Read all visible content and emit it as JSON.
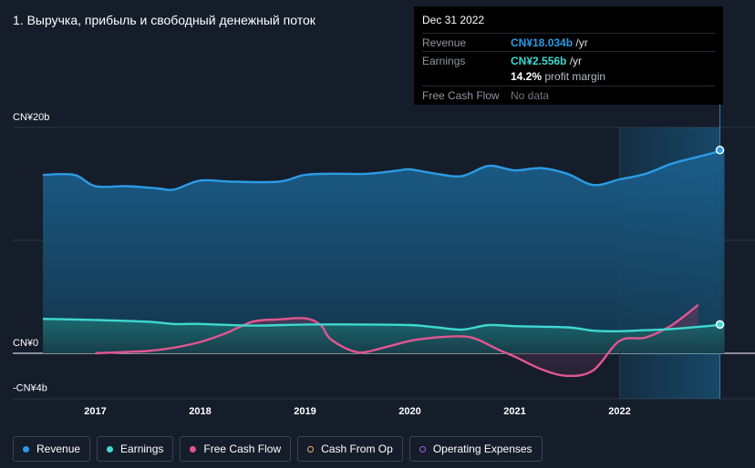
{
  "title": "1. Выручка, прибыль и свободный денежный поток",
  "tooltip": {
    "date": "Dec 31 2022",
    "revenue_label": "Revenue",
    "revenue_value": "CN¥18.034b",
    "revenue_unit": "/yr",
    "earnings_label": "Earnings",
    "earnings_value": "CN¥2.556b",
    "earnings_unit": "/yr",
    "margin_value": "14.2%",
    "margin_label": "profit margin",
    "fcf_label": "Free Cash Flow",
    "fcf_value": "No data"
  },
  "legend": [
    {
      "label": "Revenue",
      "color": "#2b9be5",
      "filled": true
    },
    {
      "label": "Earnings",
      "color": "#3fd9cf",
      "filled": true
    },
    {
      "label": "Free Cash Flow",
      "color": "#e2568f",
      "filled": true
    },
    {
      "label": "Cash From Op",
      "color": "#e8b06a",
      "filled": false
    },
    {
      "label": "Operating Expenses",
      "color": "#a461d8",
      "filled": false
    }
  ],
  "chart_data": {
    "type": "area",
    "title": "1. Выручка, прибыль и свободный денежный поток",
    "ylim": [
      -4,
      20
    ],
    "y_tick_labels": [
      {
        "value": 20,
        "label": "CN¥20b"
      },
      {
        "value": 0,
        "label": "CN¥0"
      },
      {
        "value": -4,
        "label": "-CN¥4b"
      }
    ],
    "xlim": [
      2016.5,
      2023.0
    ],
    "x_tick_labels": [
      "2017",
      "2018",
      "2019",
      "2020",
      "2021",
      "2022"
    ],
    "x_tick_values": [
      2017,
      2018,
      2019,
      2020,
      2021,
      2022
    ],
    "forecast_start": 2022.0,
    "series": [
      {
        "name": "Revenue",
        "color": "#2b9be5",
        "x": [
          2016.5,
          2016.8,
          2017.0,
          2017.3,
          2017.6,
          2017.75,
          2018.0,
          2018.3,
          2018.75,
          2019.0,
          2019.3,
          2019.6,
          2019.9,
          2020.0,
          2020.25,
          2020.5,
          2020.75,
          2021.0,
          2021.25,
          2021.5,
          2021.75,
          2022.0,
          2022.25,
          2022.5,
          2022.75,
          2023.0
        ],
        "values": [
          15.8,
          15.8,
          14.8,
          14.8,
          14.6,
          14.5,
          15.3,
          15.2,
          15.2,
          15.8,
          15.9,
          15.9,
          16.2,
          16.3,
          15.9,
          15.7,
          16.6,
          16.2,
          16.4,
          15.9,
          14.9,
          15.4,
          15.9,
          16.8,
          17.4,
          18.0
        ]
      },
      {
        "name": "Earnings",
        "color": "#3fd9cf",
        "x": [
          2016.5,
          2017.0,
          2017.5,
          2017.75,
          2018.0,
          2018.5,
          2019.0,
          2019.5,
          2020.0,
          2020.25,
          2020.5,
          2020.75,
          2021.0,
          2021.5,
          2021.75,
          2022.0,
          2022.25,
          2022.5,
          2023.0
        ],
        "values": [
          3.05,
          2.95,
          2.8,
          2.6,
          2.6,
          2.45,
          2.55,
          2.55,
          2.5,
          2.3,
          2.1,
          2.5,
          2.4,
          2.3,
          2.0,
          1.95,
          2.05,
          2.15,
          2.55
        ]
      },
      {
        "name": "Free Cash Flow",
        "color": "#e2568f",
        "x": [
          2017.0,
          2017.25,
          2017.5,
          2017.75,
          2018.0,
          2018.25,
          2018.5,
          2018.75,
          2019.0,
          2019.15,
          2019.25,
          2019.5,
          2019.75,
          2020.0,
          2020.25,
          2020.5,
          2020.65,
          2020.85,
          2021.0,
          2021.25,
          2021.5,
          2021.75,
          2022.0,
          2022.25,
          2022.5,
          2022.75
        ],
        "values": [
          0.0,
          0.1,
          0.2,
          0.5,
          1.0,
          1.8,
          2.8,
          3.0,
          3.1,
          2.5,
          1.2,
          0.1,
          0.5,
          1.1,
          1.4,
          1.5,
          1.2,
          0.3,
          -0.3,
          -1.4,
          -2.0,
          -1.5,
          1.1,
          1.4,
          2.5,
          4.3
        ]
      }
    ]
  }
}
